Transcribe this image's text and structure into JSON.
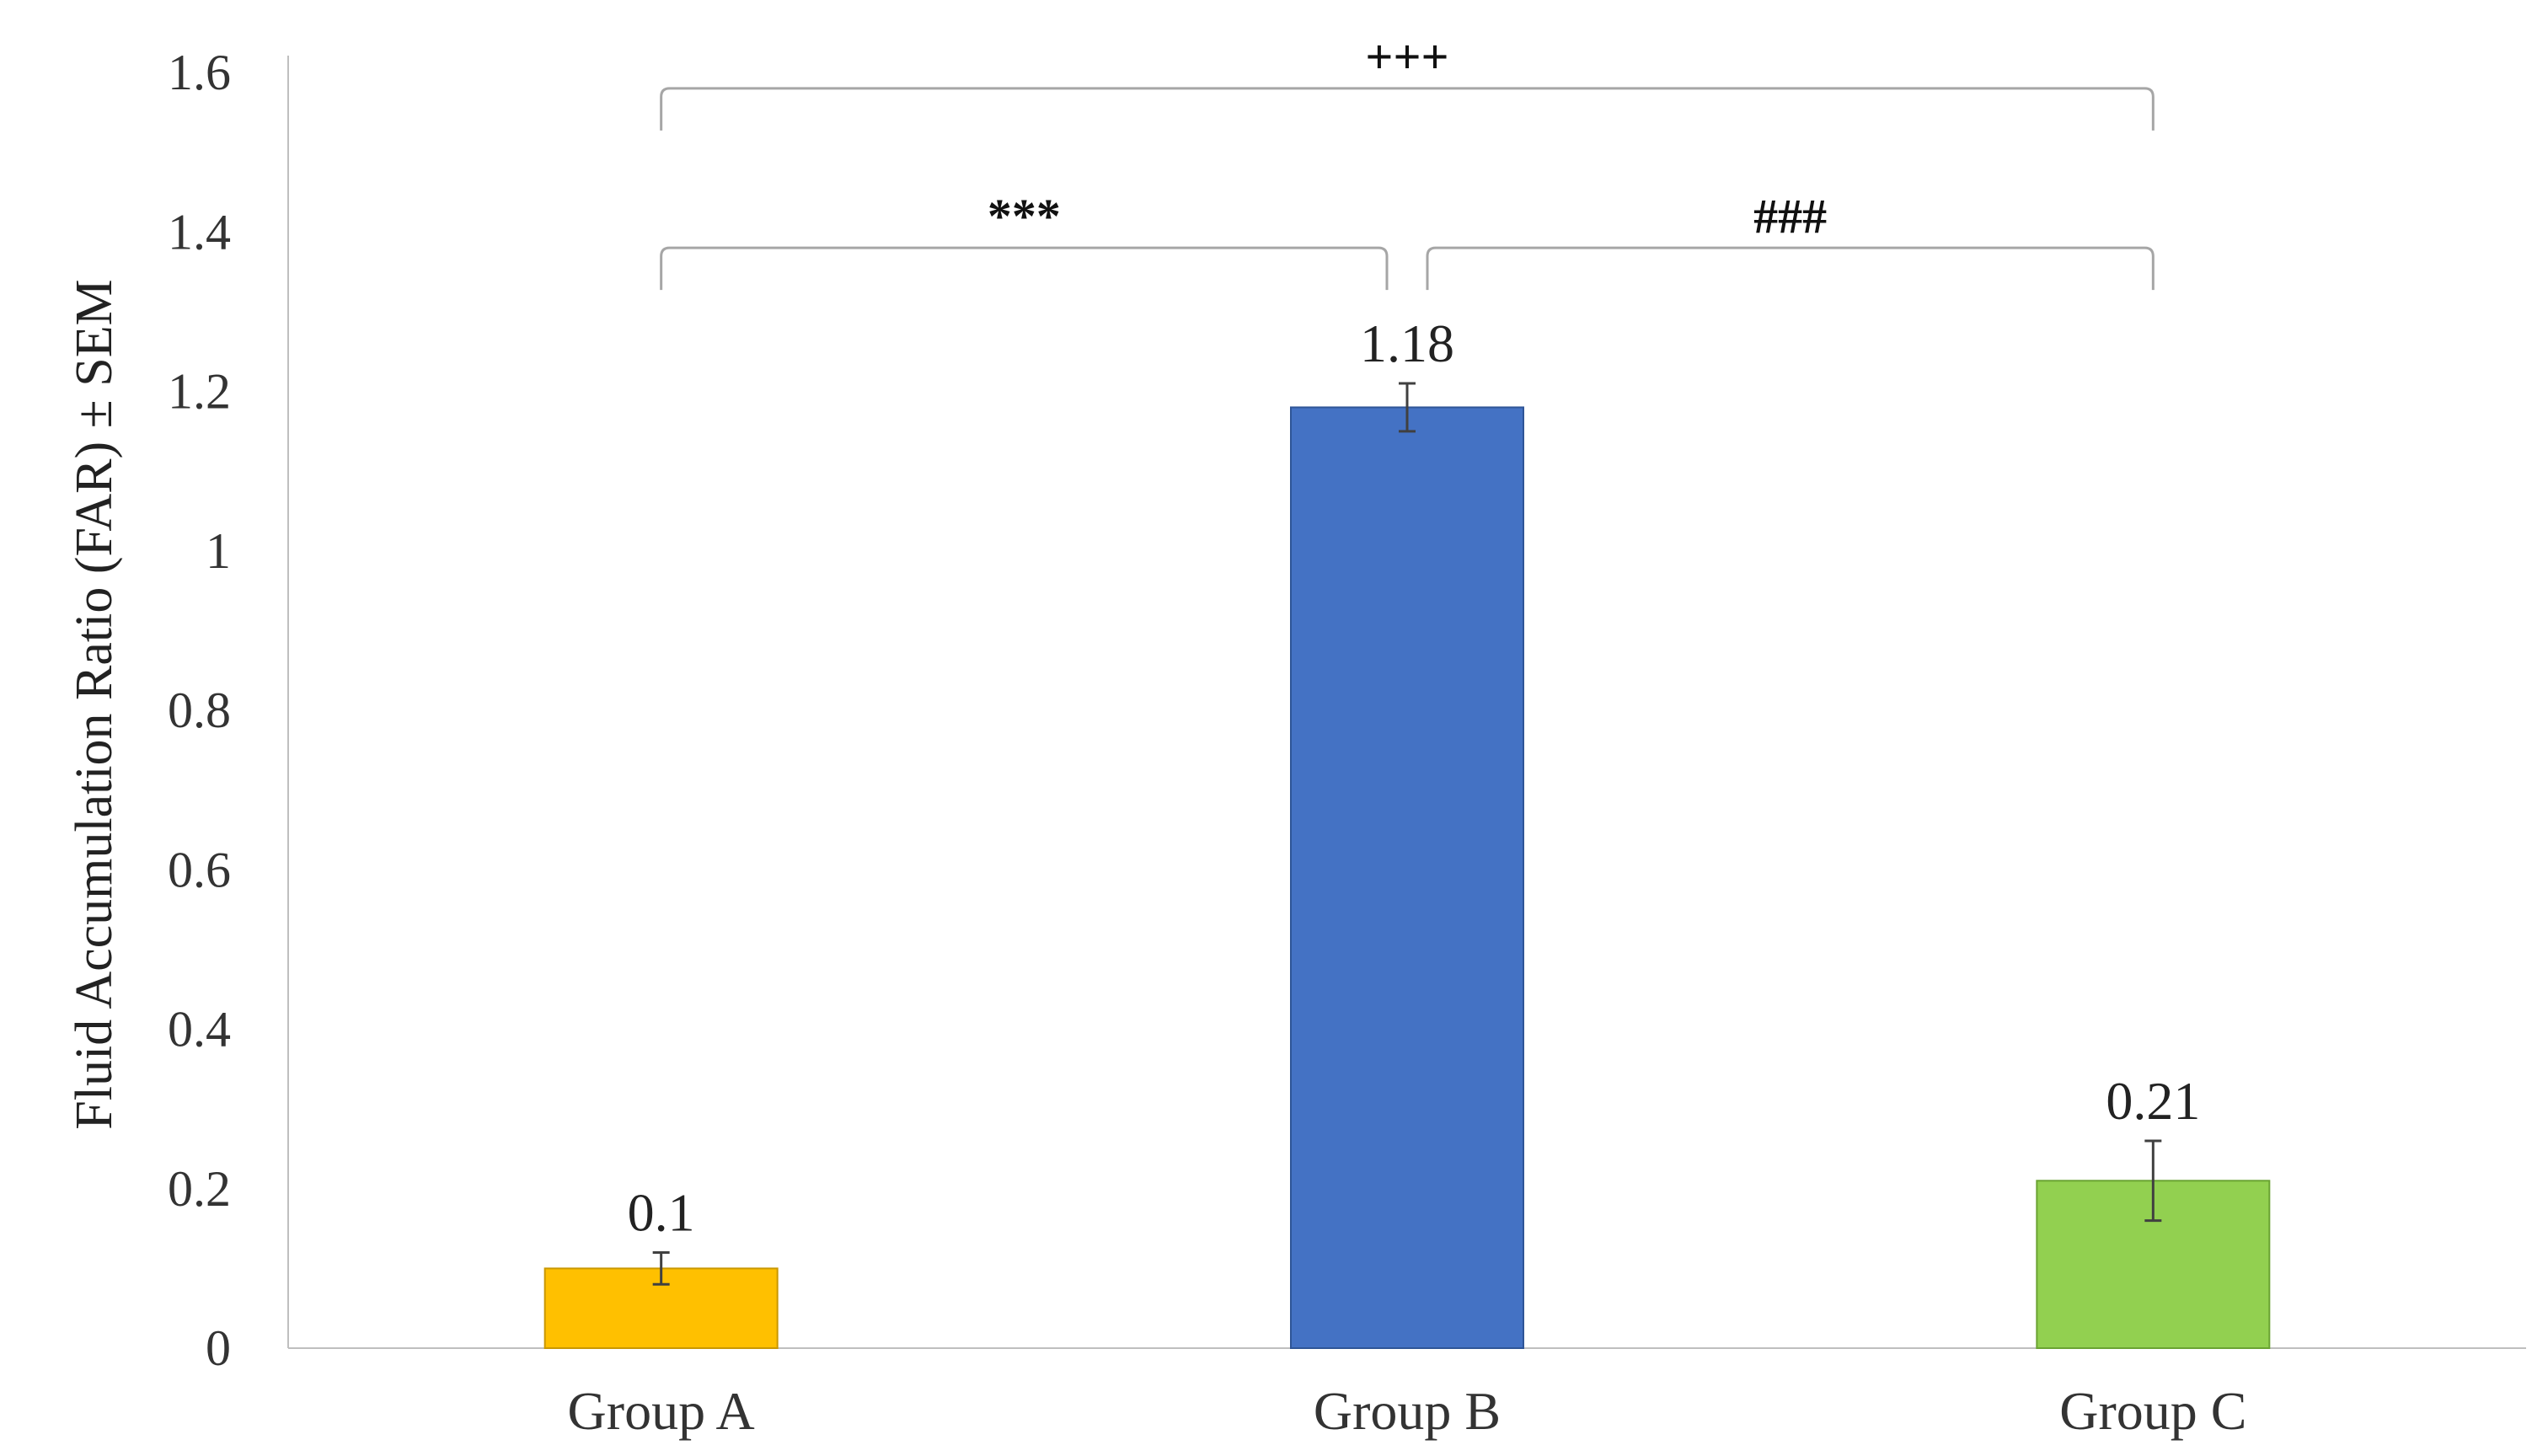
{
  "chart_data": {
    "type": "bar",
    "title": "",
    "xlabel": "",
    "ylabel": "Fluid Accumulation Ratio (FAR) ± SEM",
    "ylim": [
      0,
      1.6
    ],
    "yticks": [
      0,
      0.2,
      0.4,
      0.6,
      0.8,
      1,
      1.2,
      1.4,
      1.6
    ],
    "ytick_labels": [
      "0",
      "0.2",
      "0.4",
      "0.6",
      "0.8",
      "1",
      "1.2",
      "1.4",
      "1.6"
    ],
    "grid": false,
    "legend": "none",
    "categories": [
      "Group A",
      "Group B",
      "Group C"
    ],
    "values": [
      0.1,
      1.18,
      0.21
    ],
    "value_labels": [
      "0.1",
      "1.18",
      "0.21"
    ],
    "errors": [
      0.02,
      0.03,
      0.05
    ],
    "colors": [
      "#FFC000",
      "#4472C4",
      "#92D050"
    ],
    "bar_edge_colors": [
      "#C99700",
      "#2F5597",
      "#6AA332"
    ],
    "significance": [
      {
        "from": 0,
        "to": 1,
        "label": "***",
        "level": 1.38
      },
      {
        "from": 1,
        "to": 2,
        "label": "###",
        "level": 1.38
      },
      {
        "from": 0,
        "to": 2,
        "label": "+++",
        "level": 1.58
      }
    ]
  }
}
